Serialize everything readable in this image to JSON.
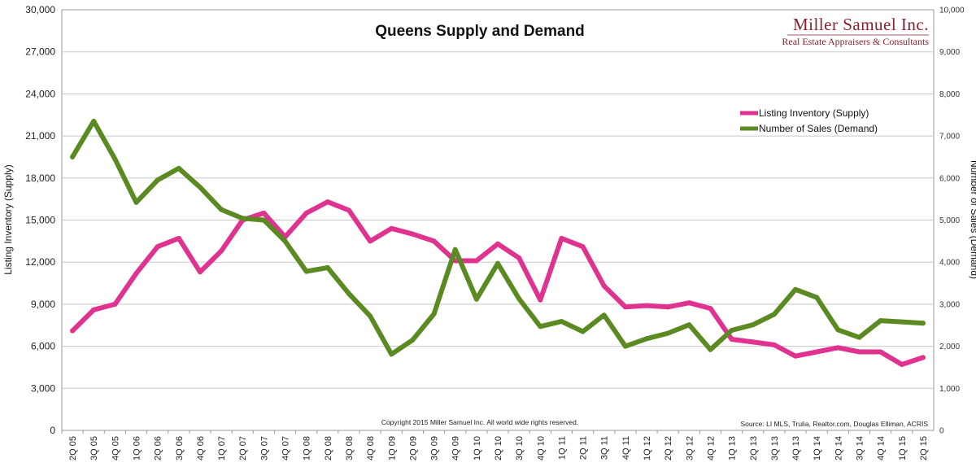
{
  "chart_data": {
    "type": "line",
    "title": "Queens Supply and Demand",
    "ylabel_left": "Listing Inventory (Supply)",
    "ylabel_right": "Number of Sales (Demand)",
    "ylim_left": [
      0,
      30000
    ],
    "ylim_right": [
      0,
      10000
    ],
    "yticks_left": [
      "0",
      "3,000",
      "6,000",
      "9,000",
      "12,000",
      "15,000",
      "18,000",
      "21,000",
      "24,000",
      "27,000",
      "30,000"
    ],
    "yticks_right": [
      "0",
      "1,000",
      "2,000",
      "3,000",
      "4,000",
      "5,000",
      "6,000",
      "7,000",
      "8,000",
      "9,000",
      "10,000"
    ],
    "grid": true,
    "legend_position": "top-right",
    "categories": [
      "2Q 05",
      "3Q 05",
      "4Q 05",
      "1Q 06",
      "2Q 06",
      "3Q 06",
      "4Q 06",
      "1Q 07",
      "2Q 07",
      "3Q 07",
      "4Q 07",
      "1Q 08",
      "2Q 08",
      "3Q 08",
      "4Q 08",
      "1Q 09",
      "2Q 09",
      "3Q 09",
      "4Q 09",
      "1Q 10",
      "2Q 10",
      "3Q 10",
      "4Q 10",
      "1Q 11",
      "2Q 11",
      "3Q 11",
      "4Q 11",
      "1Q 12",
      "2Q 12",
      "3Q 12",
      "4Q 12",
      "1Q 13",
      "2Q 13",
      "3Q 13",
      "4Q 13",
      "1Q 14",
      "2Q 14",
      "3Q 14",
      "4Q 14",
      "1Q 15",
      "2Q 15"
    ],
    "series": [
      {
        "name": "Listing Inventory (Supply)",
        "axis": "left",
        "color": "#e0338f",
        "values": [
          7100,
          8600,
          9000,
          11200,
          13100,
          13700,
          11300,
          12800,
          15000,
          15500,
          13800,
          15500,
          16300,
          15700,
          13500,
          14400,
          14000,
          13500,
          12100,
          12100,
          13300,
          12300,
          9300,
          13700,
          13100,
          10300,
          8800,
          8900,
          8800,
          9100,
          8700,
          6500,
          6300,
          6100,
          5300,
          5600,
          5900,
          5600,
          5600,
          4700,
          5200
        ]
      },
      {
        "name": "Number of Sales (Demand)",
        "axis": "right",
        "color": "#5b8a23",
        "values": [
          6500,
          7350,
          6450,
          5420,
          5950,
          6230,
          5780,
          5250,
          5040,
          5000,
          4500,
          3780,
          3870,
          3250,
          2720,
          1810,
          2150,
          2770,
          4300,
          3120,
          3970,
          3130,
          2470,
          2590,
          2350,
          2740,
          2000,
          2180,
          2310,
          2510,
          1920,
          2380,
          2510,
          2760,
          3350,
          3160,
          2390,
          2210,
          2610,
          2580,
          2550
        ]
      }
    ]
  },
  "logo": {
    "name": "Miller Samuel Inc.",
    "tagline": "Real Estate Appraisers & Consultants"
  },
  "copyright": "Copyright 2015 Miller Samuel Inc.  All world wide rights reserved.",
  "source": "Source: LI MLS, Trulia, Realtor.com, Douglas Elliman, ACRIS"
}
